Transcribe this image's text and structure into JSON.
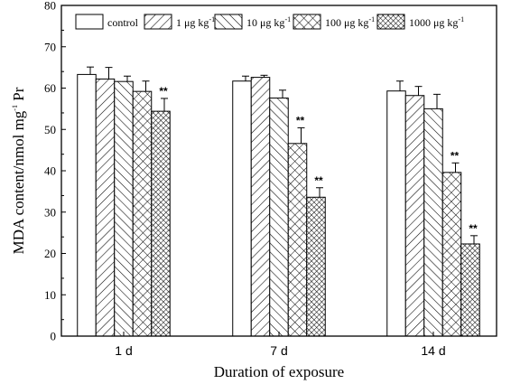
{
  "chart_data": {
    "type": "bar",
    "xlabel": "Duration of exposure",
    "ylabel": {
      "main": "MDA content/nmol mg",
      "sup": "-1",
      "tail": " Pr"
    },
    "ylim": [
      0,
      80
    ],
    "yticks": [
      "0",
      "10",
      "20",
      "30",
      "40",
      "50",
      "60",
      "70",
      "80"
    ],
    "categories": [
      "1 d",
      "7 d",
      "14 d"
    ],
    "legend_position": "top",
    "series": [
      {
        "name": "control",
        "unit": "",
        "unit_sup": "",
        "pattern": "blank",
        "values": [
          63.3,
          61.7,
          59.3
        ],
        "errors": [
          1.8,
          1.2,
          2.4
        ],
        "labels": [
          "",
          "",
          ""
        ]
      },
      {
        "name": "1 μg kg",
        "unit": "",
        "unit_sup": "-1",
        "pattern": "slash",
        "values": [
          62.2,
          62.6,
          58.2
        ],
        "errors": [
          2.8,
          0.5,
          2.2
        ],
        "labels": [
          "",
          "",
          ""
        ]
      },
      {
        "name": "10 μg kg",
        "unit": "",
        "unit_sup": "-1",
        "pattern": "backslash",
        "values": [
          61.6,
          57.6,
          55.0
        ],
        "errors": [
          1.3,
          1.9,
          3.5
        ],
        "labels": [
          "",
          "",
          ""
        ]
      },
      {
        "name": "100 μg kg",
        "unit": "",
        "unit_sup": "-1",
        "pattern": "cross",
        "values": [
          59.2,
          46.6,
          39.6
        ],
        "errors": [
          2.5,
          3.8,
          2.3
        ],
        "labels": [
          "",
          "**",
          "**"
        ]
      },
      {
        "name": "1000 μg kg",
        "unit": "",
        "unit_sup": "-1",
        "pattern": "dense",
        "values": [
          54.4,
          33.6,
          22.3
        ],
        "errors": [
          3.1,
          2.3,
          2.0
        ],
        "labels": [
          "**",
          "**",
          "**"
        ]
      }
    ]
  }
}
